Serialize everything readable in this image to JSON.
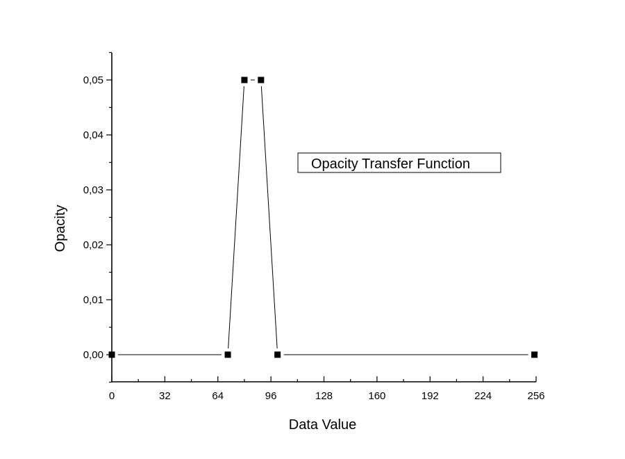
{
  "chart_data": {
    "type": "line",
    "title": "",
    "xlabel": "Data Value",
    "ylabel": "Opacity",
    "xlim": [
      0,
      256
    ],
    "ylim": [
      -0.005,
      0.055
    ],
    "x_ticks": [
      "0",
      "32",
      "64",
      "96",
      "128",
      "160",
      "192",
      "224",
      "256"
    ],
    "x_tick_values": [
      0,
      32,
      64,
      96,
      128,
      160,
      192,
      224,
      256
    ],
    "y_ticks": [
      "0,00",
      "0,01",
      "0,02",
      "0,03",
      "0,04",
      "0,05"
    ],
    "y_tick_values": [
      0,
      0.01,
      0.02,
      0.03,
      0.04,
      0.05
    ],
    "grid": false,
    "legend_position": "top-right",
    "series": [
      {
        "name": "Opacity Transfer Function",
        "color": "#000000",
        "marker": "square",
        "x": [
          0,
          70,
          80,
          90,
          100,
          255
        ],
        "y": [
          0,
          0,
          0.05,
          0.05,
          0,
          0
        ]
      }
    ]
  }
}
